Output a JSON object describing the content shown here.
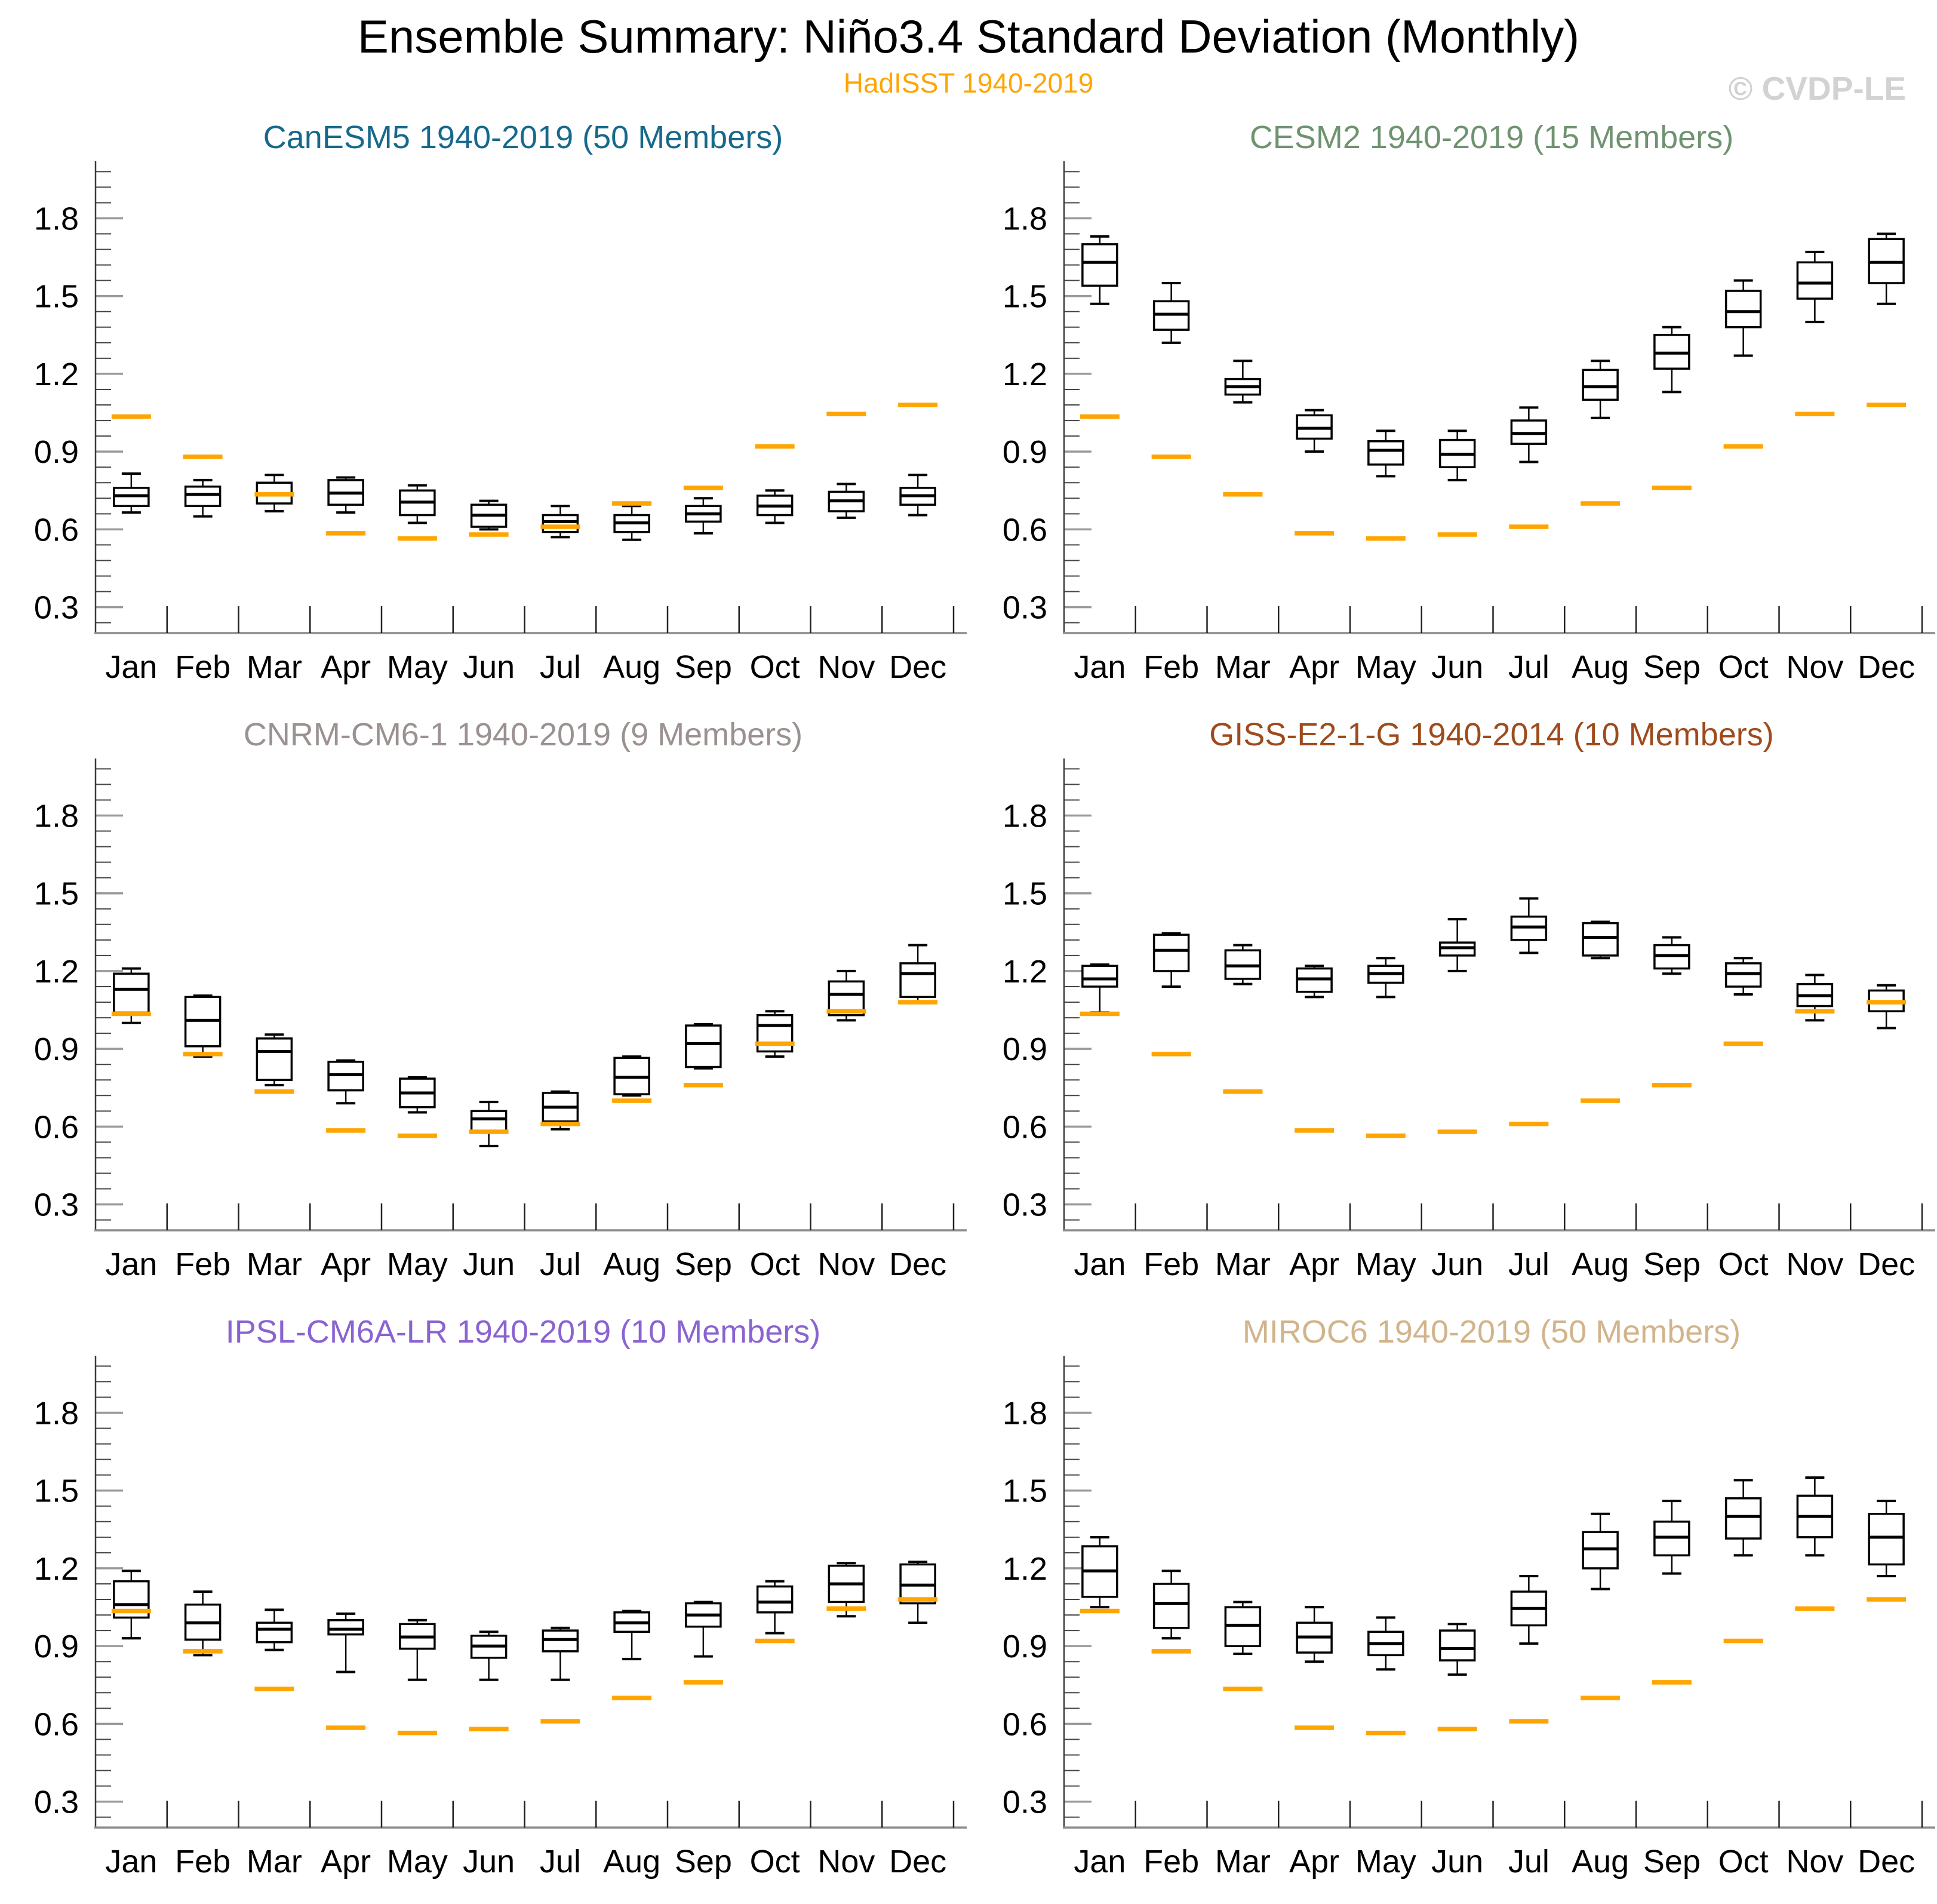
{
  "header": {
    "title": "Ensemble Summary: Niño3.4 Standard Deviation (Monthly)",
    "subtitle": "HadISST 1940-2019",
    "watermark": "© CVDP-LE"
  },
  "colors": {
    "observed_line": "#FFA500",
    "box_stroke": "#000000",
    "major_tick": "#9A9A9A",
    "minor_tick": "#444444",
    "axis_line": "#8C8C8C",
    "watermark": "#D2D2D2"
  },
  "chart_data": {
    "type": "boxplot-grid",
    "months": [
      "Jan",
      "Feb",
      "Mar",
      "Apr",
      "May",
      "Jun",
      "Jul",
      "Aug",
      "Sep",
      "Oct",
      "Nov",
      "Dec"
    ],
    "y_axis": {
      "ticks": [
        0.3,
        0.6,
        0.9,
        1.2,
        1.5,
        1.8
      ],
      "minor_step": 0.06,
      "range": [
        0.2,
        2.02
      ],
      "grid": false
    },
    "box_stats_order": [
      "whisker_low",
      "q1",
      "median",
      "q3",
      "whisker_high"
    ],
    "observed": {
      "label": "HadISST 1940-2019",
      "color": "#FFA500",
      "monthly_stddev": [
        1.035,
        0.88,
        0.735,
        0.585,
        0.565,
        0.58,
        0.61,
        0.7,
        0.76,
        0.92,
        1.045,
        1.08
      ]
    },
    "panels": [
      {
        "name": "CanESM5",
        "title": "CanESM5 1940-2019 (50 Members)",
        "title_color": "#17698C",
        "boxes": [
          [
            0.665,
            0.69,
            0.73,
            0.76,
            0.815
          ],
          [
            0.65,
            0.69,
            0.735,
            0.765,
            0.79
          ],
          [
            0.67,
            0.7,
            0.735,
            0.78,
            0.81
          ],
          [
            0.665,
            0.695,
            0.74,
            0.79,
            0.8
          ],
          [
            0.625,
            0.655,
            0.705,
            0.75,
            0.77
          ],
          [
            0.6,
            0.61,
            0.655,
            0.695,
            0.71
          ],
          [
            0.57,
            0.59,
            0.63,
            0.655,
            0.69
          ],
          [
            0.56,
            0.59,
            0.625,
            0.655,
            0.69
          ],
          [
            0.585,
            0.63,
            0.66,
            0.69,
            0.72
          ],
          [
            0.625,
            0.655,
            0.69,
            0.73,
            0.75
          ],
          [
            0.645,
            0.67,
            0.71,
            0.745,
            0.775
          ],
          [
            0.655,
            0.695,
            0.73,
            0.76,
            0.81
          ]
        ]
      },
      {
        "name": "CESM2",
        "title": "CESM2 1940-2019 (15 Members)",
        "title_color": "#6E9370",
        "boxes": [
          [
            1.47,
            1.54,
            1.63,
            1.7,
            1.73
          ],
          [
            1.32,
            1.37,
            1.43,
            1.48,
            1.55
          ],
          [
            1.09,
            1.12,
            1.15,
            1.18,
            1.25
          ],
          [
            0.9,
            0.95,
            0.99,
            1.04,
            1.06
          ],
          [
            0.805,
            0.85,
            0.905,
            0.94,
            0.98
          ],
          [
            0.79,
            0.84,
            0.89,
            0.945,
            0.98
          ],
          [
            0.86,
            0.93,
            0.97,
            1.02,
            1.07
          ],
          [
            1.03,
            1.1,
            1.15,
            1.215,
            1.25
          ],
          [
            1.13,
            1.22,
            1.28,
            1.35,
            1.38
          ],
          [
            1.27,
            1.38,
            1.44,
            1.52,
            1.56
          ],
          [
            1.4,
            1.49,
            1.55,
            1.63,
            1.67
          ],
          [
            1.47,
            1.55,
            1.63,
            1.72,
            1.74
          ]
        ]
      },
      {
        "name": "CNRM-CM6-1",
        "title": "CNRM-CM6-1 1940-2019 (9 Members)",
        "title_color": "#9A9190",
        "boxes": [
          [
            1.0,
            1.04,
            1.13,
            1.19,
            1.21
          ],
          [
            0.87,
            0.91,
            1.01,
            1.1,
            1.105
          ],
          [
            0.76,
            0.78,
            0.89,
            0.94,
            0.955
          ],
          [
            0.69,
            0.74,
            0.8,
            0.85,
            0.855
          ],
          [
            0.655,
            0.675,
            0.73,
            0.785,
            0.79
          ],
          [
            0.525,
            0.58,
            0.63,
            0.66,
            0.695
          ],
          [
            0.59,
            0.62,
            0.675,
            0.73,
            0.735
          ],
          [
            0.72,
            0.725,
            0.79,
            0.865,
            0.87
          ],
          [
            0.825,
            0.83,
            0.92,
            0.99,
            0.995
          ],
          [
            0.87,
            0.89,
            0.99,
            1.03,
            1.045
          ],
          [
            1.01,
            1.03,
            1.11,
            1.16,
            1.2
          ],
          [
            1.08,
            1.1,
            1.19,
            1.23,
            1.3
          ]
        ]
      },
      {
        "name": "GISS-E2-1-G",
        "title": "GISS-E2-1-G 1940-2014 (10 Members)",
        "title_color": "#9E4B1C",
        "boxes": [
          [
            1.04,
            1.14,
            1.17,
            1.22,
            1.225
          ],
          [
            1.14,
            1.2,
            1.28,
            1.34,
            1.345
          ],
          [
            1.15,
            1.17,
            1.22,
            1.28,
            1.3
          ],
          [
            1.1,
            1.12,
            1.17,
            1.21,
            1.22
          ],
          [
            1.1,
            1.155,
            1.19,
            1.22,
            1.25
          ],
          [
            1.2,
            1.26,
            1.29,
            1.31,
            1.4
          ],
          [
            1.27,
            1.32,
            1.37,
            1.41,
            1.48
          ],
          [
            1.25,
            1.26,
            1.33,
            1.385,
            1.39
          ],
          [
            1.19,
            1.21,
            1.26,
            1.3,
            1.33
          ],
          [
            1.11,
            1.14,
            1.19,
            1.23,
            1.25
          ],
          [
            1.01,
            1.065,
            1.105,
            1.15,
            1.185
          ],
          [
            0.98,
            1.045,
            1.08,
            1.125,
            1.145
          ]
        ]
      },
      {
        "name": "IPSL-CM6A-LR",
        "title": "IPSL-CM6A-LR 1940-2019 (10 Members)",
        "title_color": "#8A63D2",
        "boxes": [
          [
            0.93,
            1.01,
            1.06,
            1.15,
            1.19
          ],
          [
            0.865,
            0.925,
            0.99,
            1.06,
            1.11
          ],
          [
            0.885,
            0.915,
            0.965,
            0.99,
            1.04
          ],
          [
            0.8,
            0.945,
            0.965,
            1.0,
            1.025
          ],
          [
            0.77,
            0.89,
            0.935,
            0.985,
            1.0
          ],
          [
            0.77,
            0.855,
            0.9,
            0.94,
            0.955
          ],
          [
            0.77,
            0.88,
            0.925,
            0.96,
            0.97
          ],
          [
            0.85,
            0.955,
            0.99,
            1.03,
            1.035
          ],
          [
            0.86,
            0.975,
            1.02,
            1.065,
            1.07
          ],
          [
            0.95,
            1.03,
            1.07,
            1.13,
            1.15
          ],
          [
            1.015,
            1.07,
            1.14,
            1.21,
            1.22
          ],
          [
            0.99,
            1.065,
            1.135,
            1.215,
            1.225
          ]
        ]
      },
      {
        "name": "MIROC6",
        "title": "MIROC6 1940-2019 (50 Members)",
        "title_color": "#D2B48C",
        "boxes": [
          [
            1.05,
            1.09,
            1.19,
            1.285,
            1.32
          ],
          [
            0.93,
            0.97,
            1.065,
            1.14,
            1.19
          ],
          [
            0.87,
            0.9,
            0.98,
            1.05,
            1.07
          ],
          [
            0.84,
            0.875,
            0.935,
            0.99,
            1.05
          ],
          [
            0.81,
            0.865,
            0.91,
            0.955,
            1.01
          ],
          [
            0.79,
            0.845,
            0.89,
            0.96,
            0.985
          ],
          [
            0.91,
            0.98,
            1.045,
            1.11,
            1.17
          ],
          [
            1.12,
            1.2,
            1.275,
            1.34,
            1.41
          ],
          [
            1.18,
            1.25,
            1.32,
            1.38,
            1.46
          ],
          [
            1.25,
            1.315,
            1.4,
            1.47,
            1.54
          ],
          [
            1.25,
            1.32,
            1.4,
            1.48,
            1.55
          ],
          [
            1.17,
            1.215,
            1.32,
            1.41,
            1.46
          ]
        ]
      }
    ]
  }
}
